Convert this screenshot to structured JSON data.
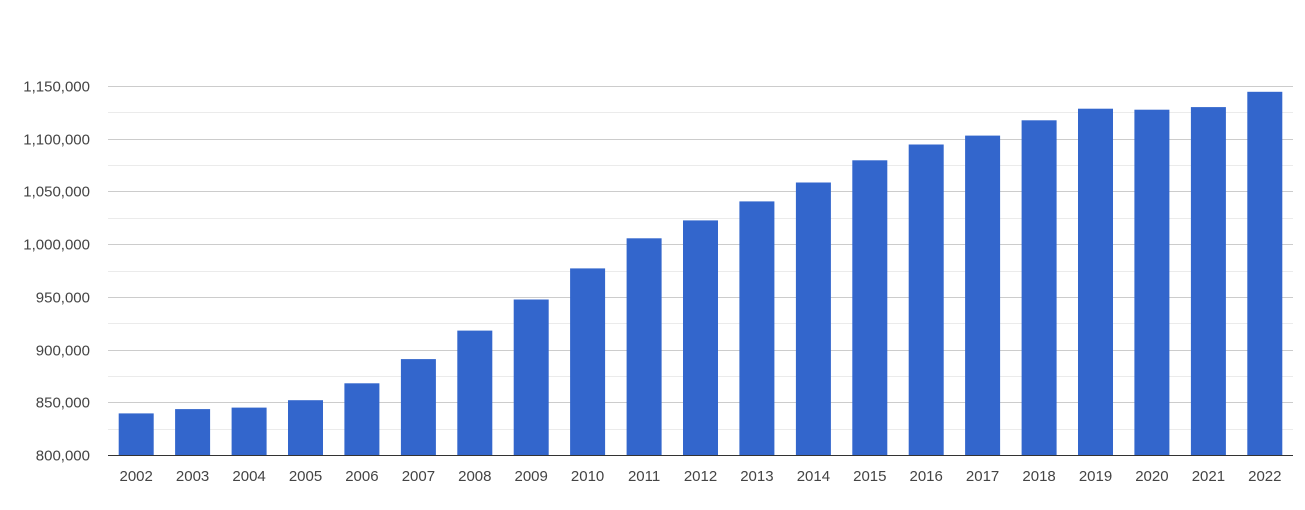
{
  "chart_data": {
    "type": "bar",
    "title": "",
    "xlabel": "",
    "ylabel": "",
    "categories": [
      "2002",
      "2003",
      "2004",
      "2005",
      "2006",
      "2007",
      "2008",
      "2009",
      "2010",
      "2011",
      "2012",
      "2013",
      "2014",
      "2015",
      "2016",
      "2017",
      "2018",
      "2019",
      "2020",
      "2021",
      "2022"
    ],
    "values": [
      839500,
      843500,
      845000,
      852000,
      868000,
      891000,
      918000,
      947500,
      977000,
      1005500,
      1022500,
      1040500,
      1058500,
      1079500,
      1094500,
      1103000,
      1117500,
      1128500,
      1127500,
      1130000,
      1144500
    ],
    "ylim": [
      800000,
      1150000
    ],
    "yticks": [
      800000,
      850000,
      900000,
      950000,
      1000000,
      1050000,
      1100000,
      1150000
    ],
    "ytick_labels": [
      "800,000",
      "850,000",
      "900,000",
      "950,000",
      "1,000,000",
      "1,050,000",
      "1,100,000",
      "1,150,000"
    ],
    "grid": true,
    "legend": "none",
    "bar_color": "#3366cc"
  }
}
